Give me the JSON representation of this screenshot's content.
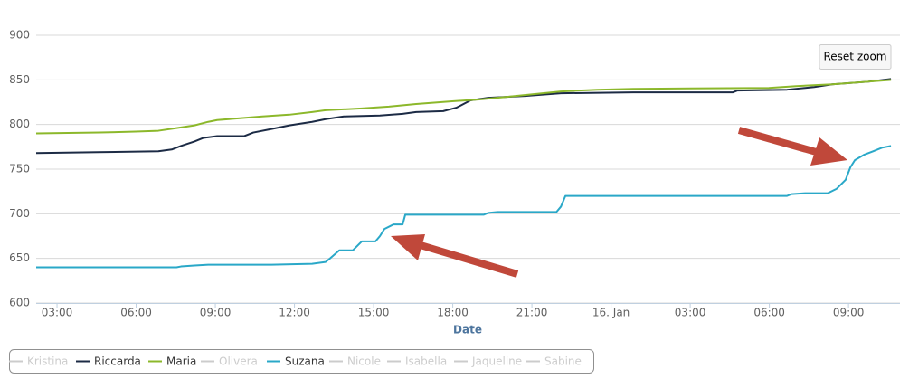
{
  "chart_data": {
    "type": "line",
    "x_label": "Date",
    "xlim": [
      2.21,
      34.95
    ],
    "xticks": [
      {
        "value": 3,
        "label": "03:00"
      },
      {
        "value": 6,
        "label": "06:00"
      },
      {
        "value": 9,
        "label": "09:00"
      },
      {
        "value": 12,
        "label": "12:00"
      },
      {
        "value": 15,
        "label": "15:00"
      },
      {
        "value": 18,
        "label": "18:00"
      },
      {
        "value": 21,
        "label": "21:00"
      },
      {
        "value": 24,
        "label": "16. Jan"
      },
      {
        "value": 27,
        "label": "03:00"
      },
      {
        "value": 30,
        "label": "06:00"
      },
      {
        "value": 33,
        "label": "09:00"
      }
    ],
    "ylim": [
      600,
      900
    ],
    "yticks": [
      600,
      650,
      700,
      750,
      800,
      850,
      900
    ],
    "grid": true,
    "legend_position": "bottom-left",
    "reset_zoom": "Reset zoom",
    "series": [
      {
        "name": "Kristina",
        "color": "#cccccc",
        "visible": false
      },
      {
        "name": "Riccarda",
        "color": "#1c2b45",
        "visible": true,
        "x": [
          2.21,
          4.54,
          6.84,
          7.35,
          7.7,
          8.21,
          8.55,
          9.07,
          10.1,
          10.44,
          11.13,
          11.81,
          12.67,
          13.18,
          13.87,
          15.24,
          16.1,
          16.61,
          17.64,
          18.15,
          18.67,
          19.35,
          20.73,
          22.1,
          24.84,
          28.61,
          28.78,
          30.67,
          31.7,
          32.38,
          33.75,
          34.61
        ],
        "values": [
          768,
          769,
          770,
          772,
          776,
          781,
          785,
          787,
          787,
          791,
          795,
          799,
          803,
          806,
          809,
          810,
          812,
          814,
          815,
          819,
          827,
          830,
          832,
          835,
          836,
          836,
          838,
          839,
          842,
          845,
          848,
          851
        ]
      },
      {
        "name": "Maria",
        "color": "#8cb82b",
        "visible": true,
        "x": [
          2.21,
          4.61,
          5.98,
          6.84,
          7.53,
          8.21,
          8.73,
          9.07,
          9.93,
          10.78,
          11.81,
          12.67,
          13.18,
          14.55,
          15.58,
          16.61,
          17.98,
          19.01,
          20.04,
          21.07,
          22.1,
          23.47,
          24.84,
          29.98,
          31.01,
          32.38,
          33.75,
          34.61
        ],
        "values": [
          790,
          791,
          792,
          793,
          796,
          799,
          803,
          805,
          807,
          809,
          811,
          814,
          816,
          818,
          820,
          823,
          826,
          828,
          831,
          834,
          837,
          839,
          840,
          841,
          843,
          845,
          848,
          850
        ]
      },
      {
        "name": "Olivera",
        "color": "#cccccc",
        "visible": false
      },
      {
        "name": "Suzana",
        "color": "#2aa8c8",
        "visible": true,
        "x": [
          2.21,
          7.53,
          7.7,
          8.21,
          8.73,
          11.13,
          12.67,
          13.18,
          13.35,
          13.7,
          14.21,
          14.55,
          15.07,
          15.24,
          15.41,
          15.75,
          16.1,
          16.2,
          19.18,
          19.35,
          19.7,
          21.93,
          22.1,
          22.27,
          30.67,
          30.84,
          31.35,
          32.21,
          32.55,
          32.89,
          33.07,
          33.24,
          33.58,
          33.93,
          34.27,
          34.61
        ],
        "values": [
          640,
          640,
          641,
          642,
          643,
          643,
          644,
          646,
          650,
          659,
          659,
          669,
          669,
          675,
          683,
          688,
          688,
          699,
          699,
          701,
          702,
          702,
          708,
          720,
          720,
          722,
          723,
          723,
          728,
          738,
          752,
          760,
          766,
          770,
          774,
          776
        ]
      },
      {
        "name": "Nicole",
        "color": "#cccccc",
        "visible": false
      },
      {
        "name": "Isabella",
        "color": "#cccccc",
        "visible": false
      },
      {
        "name": "Jaqueline",
        "color": "#cccccc",
        "visible": false
      },
      {
        "name": "Sabine",
        "color": "#cccccc",
        "visible": false
      }
    ]
  }
}
